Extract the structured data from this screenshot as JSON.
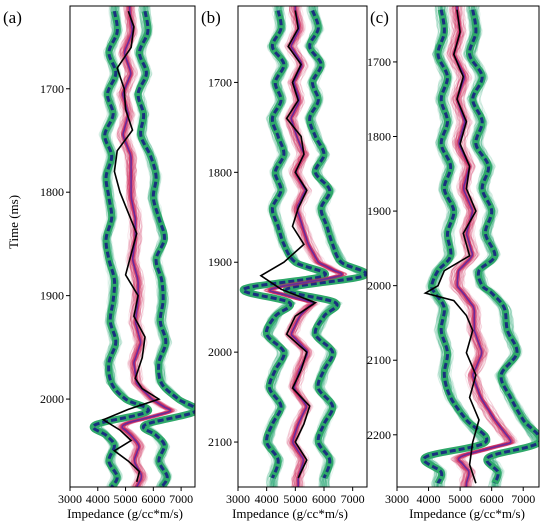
{
  "chart_data": [
    {
      "type": "line",
      "panel_label": "(a)",
      "xlabel": "Impedance (g/cc*m/s)",
      "ylabel": "Time (ms)",
      "xlim": [
        3000,
        7500
      ],
      "ylim": [
        1620,
        2085
      ],
      "xticks": [
        "3000",
        "4000",
        "5000",
        "6000",
        "7000"
      ],
      "yticks": [
        "1700",
        "1800",
        "1900",
        "2000"
      ],
      "series": [
        {
          "role": "true-log",
          "color": "#000000",
          "t": [
            1625,
            1640,
            1660,
            1680,
            1700,
            1720,
            1740,
            1760,
            1780,
            1800,
            1820,
            1840,
            1860,
            1880,
            1900,
            1920,
            1940,
            1960,
            1980,
            1990,
            2000,
            2010,
            2020,
            2030,
            2040,
            2050,
            2060,
            2070,
            2080
          ],
          "v": [
            5100,
            5300,
            5200,
            4700,
            4950,
            5000,
            5250,
            4700,
            4600,
            4800,
            5100,
            5400,
            5200,
            5000,
            5450,
            5300,
            5700,
            5600,
            5350,
            5600,
            6200,
            5100,
            4200,
            4800,
            5200,
            4600,
            5100,
            5500,
            5400
          ]
        },
        {
          "role": "lower-bound",
          "color": "#1a2f80",
          "t": [
            1625,
            1645,
            1665,
            1685,
            1705,
            1725,
            1745,
            1765,
            1785,
            1805,
            1825,
            1845,
            1865,
            1885,
            1905,
            1925,
            1945,
            1965,
            1985,
            2000,
            2012,
            2025,
            2035,
            2045,
            2060,
            2075,
            2085
          ],
          "v": [
            4600,
            4700,
            4400,
            4650,
            4350,
            4550,
            4250,
            4500,
            4300,
            4400,
            4500,
            4300,
            4400,
            4600,
            4550,
            4450,
            4650,
            4400,
            4500,
            5000,
            5800,
            3900,
            4300,
            4600,
            4400,
            4700,
            4500
          ]
        },
        {
          "role": "upper-bound",
          "color": "#1a2f80",
          "t": [
            1625,
            1645,
            1665,
            1685,
            1705,
            1725,
            1745,
            1765,
            1785,
            1805,
            1825,
            1845,
            1865,
            1885,
            1905,
            1925,
            1945,
            1965,
            1985,
            2000,
            2012,
            2025,
            2035,
            2045,
            2060,
            2075,
            2085
          ],
          "v": [
            5700,
            5800,
            5500,
            5750,
            5450,
            5650,
            5550,
            5900,
            6100,
            6000,
            6200,
            6400,
            6100,
            6300,
            6350,
            6250,
            6450,
            6200,
            6300,
            6900,
            7500,
            5700,
            6100,
            6400,
            6200,
            6500,
            6300
          ]
        }
      ]
    },
    {
      "type": "line",
      "panel_label": "(b)",
      "xlabel": "Impedance (g/cc*m/s)",
      "ylabel": "",
      "xlim": [
        3000,
        7500
      ],
      "ylim": [
        1615,
        2150
      ],
      "xticks": [
        "3000",
        "4000",
        "5000",
        "6000",
        "7000"
      ],
      "yticks": [
        "1700",
        "1800",
        "1900",
        "2000",
        "2100"
      ],
      "series": [
        {
          "role": "true-log",
          "color": "#000000",
          "t": [
            1620,
            1640,
            1660,
            1680,
            1700,
            1720,
            1740,
            1760,
            1780,
            1800,
            1820,
            1840,
            1860,
            1880,
            1900,
            1915,
            1930,
            1945,
            1960,
            1980,
            2000,
            2020,
            2040,
            2060,
            2080,
            2100,
            2120,
            2140
          ],
          "v": [
            5000,
            5100,
            4750,
            5200,
            4900,
            5100,
            4700,
            5200,
            5300,
            5000,
            5400,
            5100,
            4900,
            5300,
            4600,
            3800,
            4500,
            5700,
            5000,
            4700,
            5400,
            5200,
            4900,
            5500,
            5300,
            5000,
            5400,
            5100
          ]
        },
        {
          "role": "lower-bound",
          "color": "#1a2f80",
          "t": [
            1620,
            1640,
            1660,
            1680,
            1700,
            1720,
            1740,
            1760,
            1780,
            1800,
            1820,
            1840,
            1860,
            1880,
            1900,
            1915,
            1930,
            1945,
            1960,
            1980,
            2000,
            2020,
            2040,
            2060,
            2080,
            2100,
            2120,
            2140
          ],
          "v": [
            4400,
            4500,
            4200,
            4600,
            4300,
            4500,
            4200,
            4400,
            4600,
            4300,
            4500,
            4200,
            4400,
            4600,
            5000,
            6000,
            3200,
            4800,
            4300,
            4000,
            4600,
            4300,
            4100,
            4500,
            4200,
            4000,
            4400,
            4200
          ]
        },
        {
          "role": "upper-bound",
          "color": "#1a2f80",
          "t": [
            1620,
            1640,
            1660,
            1680,
            1700,
            1720,
            1740,
            1760,
            1780,
            1800,
            1820,
            1840,
            1860,
            1880,
            1900,
            1915,
            1930,
            1945,
            1960,
            1980,
            2000,
            2020,
            2040,
            2060,
            2080,
            2100,
            2120,
            2140
          ],
          "v": [
            5600,
            5800,
            5500,
            5900,
            5600,
            5800,
            5500,
            5700,
            6000,
            5700,
            6200,
            5900,
            6100,
            6300,
            6600,
            7400,
            4700,
            6400,
            6000,
            5700,
            6300,
            6000,
            5800,
            6300,
            6000,
            5800,
            6200,
            6000
          ]
        }
      ]
    },
    {
      "type": "line",
      "panel_label": "(c)",
      "xlabel": "Impedance (g/cc*m/s)",
      "ylabel": "",
      "xlim": [
        3000,
        7500
      ],
      "ylim": [
        1625,
        2270
      ],
      "xticks": [
        "3000",
        "4000",
        "5000",
        "6000",
        "7000"
      ],
      "yticks": [
        "1700",
        "1800",
        "1900",
        "2000",
        "2100",
        "2200"
      ],
      "series": [
        {
          "role": "true-log",
          "color": "#000000",
          "t": [
            1630,
            1660,
            1690,
            1720,
            1750,
            1780,
            1810,
            1840,
            1870,
            1900,
            1930,
            1960,
            1980,
            2000,
            2010,
            2020,
            2040,
            2060,
            2090,
            2120,
            2150,
            2180,
            2210,
            2240,
            2265
          ],
          "v": [
            4900,
            5000,
            4800,
            5100,
            4900,
            5200,
            5000,
            5300,
            5200,
            5500,
            5100,
            5300,
            4500,
            4300,
            3900,
            4800,
            5200,
            5400,
            5200,
            5500,
            5300,
            5600,
            5400,
            5300,
            5500
          ]
        },
        {
          "role": "lower-bound",
          "color": "#1a2f80",
          "t": [
            1630,
            1660,
            1690,
            1720,
            1750,
            1780,
            1810,
            1840,
            1870,
            1900,
            1930,
            1960,
            1980,
            2000,
            2010,
            2030,
            2060,
            2090,
            2120,
            2150,
            2180,
            2210,
            2230,
            2250,
            2265
          ],
          "v": [
            4400,
            4500,
            4300,
            4600,
            4400,
            4600,
            4400,
            4700,
            4500,
            4800,
            4600,
            4700,
            4300,
            4100,
            4200,
            4500,
            4400,
            4600,
            4500,
            4700,
            5200,
            5800,
            3900,
            4400,
            4300
          ]
        },
        {
          "role": "upper-bound",
          "color": "#1a2f80",
          "t": [
            1630,
            1660,
            1690,
            1720,
            1750,
            1780,
            1810,
            1840,
            1870,
            1900,
            1930,
            1960,
            1980,
            2000,
            2010,
            2030,
            2060,
            2090,
            2120,
            2150,
            2180,
            2210,
            2230,
            2250,
            2265
          ],
          "v": [
            5400,
            5500,
            5300,
            5700,
            5400,
            5700,
            5500,
            5900,
            5700,
            6000,
            5800,
            6100,
            5600,
            5700,
            6000,
            6400,
            6500,
            6800,
            6300,
            6600,
            7000,
            7500,
            5900,
            6200,
            6100
          ]
        }
      ]
    }
  ]
}
